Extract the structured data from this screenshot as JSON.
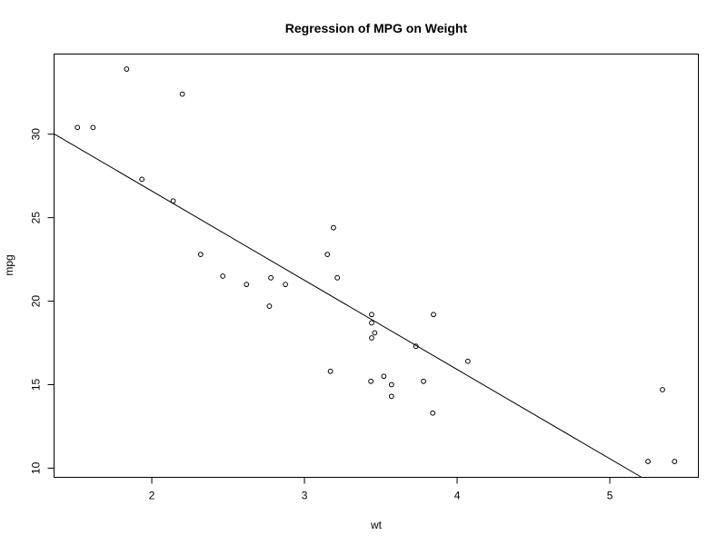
{
  "chart_data": {
    "type": "scatter",
    "title": "Regression of MPG on Weight",
    "xlabel": "wt",
    "ylabel": "mpg",
    "xlim": [
      1.36,
      5.58
    ],
    "ylim": [
      9.45,
      34.8
    ],
    "xticks": [
      2,
      3,
      4,
      5
    ],
    "yticks": [
      10,
      15,
      20,
      25,
      30
    ],
    "grid": false,
    "legend": "none",
    "point_color": "#000000",
    "line_color": "#000000",
    "points": [
      {
        "x": 2.62,
        "y": 21.0
      },
      {
        "x": 2.875,
        "y": 21.0
      },
      {
        "x": 2.32,
        "y": 22.8
      },
      {
        "x": 3.215,
        "y": 21.4
      },
      {
        "x": 3.44,
        "y": 18.7
      },
      {
        "x": 3.46,
        "y": 18.1
      },
      {
        "x": 3.57,
        "y": 14.3
      },
      {
        "x": 3.19,
        "y": 24.4
      },
      {
        "x": 3.15,
        "y": 22.8
      },
      {
        "x": 3.44,
        "y": 19.2
      },
      {
        "x": 3.44,
        "y": 17.8
      },
      {
        "x": 4.07,
        "y": 16.4
      },
      {
        "x": 3.73,
        "y": 17.3
      },
      {
        "x": 3.78,
        "y": 15.2
      },
      {
        "x": 5.25,
        "y": 10.4
      },
      {
        "x": 5.424,
        "y": 10.4
      },
      {
        "x": 5.345,
        "y": 14.7
      },
      {
        "x": 2.2,
        "y": 32.4
      },
      {
        "x": 1.615,
        "y": 30.4
      },
      {
        "x": 1.835,
        "y": 33.9
      },
      {
        "x": 2.465,
        "y": 21.5
      },
      {
        "x": 3.52,
        "y": 15.5
      },
      {
        "x": 3.435,
        "y": 15.2
      },
      {
        "x": 3.84,
        "y": 13.3
      },
      {
        "x": 3.845,
        "y": 19.2
      },
      {
        "x": 1.935,
        "y": 27.3
      },
      {
        "x": 2.14,
        "y": 26.0
      },
      {
        "x": 1.513,
        "y": 30.4
      },
      {
        "x": 3.17,
        "y": 15.8
      },
      {
        "x": 2.77,
        "y": 19.7
      },
      {
        "x": 3.57,
        "y": 15.0
      },
      {
        "x": 2.78,
        "y": 21.4
      }
    ],
    "regression_line": {
      "intercept": 37.285,
      "slope": -5.344
    }
  }
}
